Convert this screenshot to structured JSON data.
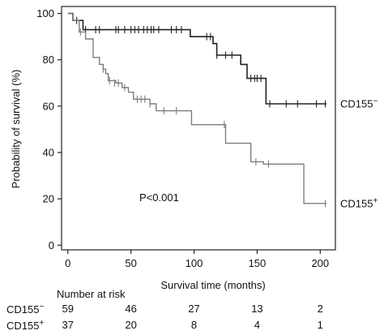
{
  "chart_data": {
    "type": "line",
    "xlabel": "Survival time (months)",
    "ylabel": "Probability of survival (%)",
    "xlim": [
      -5,
      212
    ],
    "ylim": [
      -2,
      103
    ],
    "x_ticks": [
      "0",
      "50",
      "100",
      "150",
      "200"
    ],
    "y_ticks": [
      "0",
      "20",
      "40",
      "60",
      "80",
      "100"
    ],
    "annotation": "P<0.001",
    "grid": false,
    "series": [
      {
        "name_base": "CD155",
        "name_sign": "−",
        "color": "#222222",
        "stroke_width": 1.6,
        "steps": [
          [
            0,
            100
          ],
          [
            4,
            97
          ],
          [
            12,
            93
          ],
          [
            93,
            93
          ],
          [
            97,
            90
          ],
          [
            113,
            90
          ],
          [
            115,
            87
          ],
          [
            118,
            82
          ],
          [
            135,
            82
          ],
          [
            137,
            78
          ],
          [
            142,
            72
          ],
          [
            153,
            72
          ],
          [
            157,
            61
          ],
          [
            205,
            61
          ]
        ],
        "censors": [
          [
            7,
            97
          ],
          [
            14,
            93
          ],
          [
            22,
            93
          ],
          [
            25,
            93
          ],
          [
            38,
            93
          ],
          [
            40,
            93
          ],
          [
            45,
            93
          ],
          [
            50,
            93
          ],
          [
            53,
            93
          ],
          [
            56,
            93
          ],
          [
            60,
            93
          ],
          [
            63,
            93
          ],
          [
            66,
            93
          ],
          [
            68,
            93
          ],
          [
            72,
            93
          ],
          [
            82,
            93
          ],
          [
            86,
            93
          ],
          [
            90,
            93
          ],
          [
            110,
            90
          ],
          [
            113,
            90
          ],
          [
            118,
            82
          ],
          [
            125,
            82
          ],
          [
            130,
            82
          ],
          [
            145,
            72
          ],
          [
            148,
            72
          ],
          [
            150,
            72
          ],
          [
            153,
            72
          ],
          [
            160,
            61
          ],
          [
            173,
            61
          ],
          [
            182,
            61
          ],
          [
            197,
            61
          ],
          [
            204,
            61
          ]
        ]
      },
      {
        "name_base": "CD155",
        "name_sign": "+",
        "color": "#7d7d7d",
        "stroke_width": 1.4,
        "steps": [
          [
            0,
            100
          ],
          [
            4,
            97
          ],
          [
            9,
            92
          ],
          [
            14,
            89
          ],
          [
            20,
            81
          ],
          [
            25,
            78
          ],
          [
            28,
            76
          ],
          [
            30,
            74
          ],
          [
            32,
            71
          ],
          [
            38,
            70
          ],
          [
            43,
            68
          ],
          [
            48,
            66
          ],
          [
            52,
            63
          ],
          [
            65,
            61
          ],
          [
            70,
            58
          ],
          [
            95,
            58
          ],
          [
            98,
            52
          ],
          [
            122,
            52
          ],
          [
            125,
            44
          ],
          [
            140,
            44
          ],
          [
            145,
            36
          ],
          [
            155,
            35
          ],
          [
            183,
            35
          ],
          [
            187,
            18
          ],
          [
            205,
            18
          ]
        ],
        "censors": [
          [
            10,
            92
          ],
          [
            28,
            76
          ],
          [
            33,
            71
          ],
          [
            37,
            70
          ],
          [
            40,
            70
          ],
          [
            45,
            68
          ],
          [
            55,
            63
          ],
          [
            58,
            63
          ],
          [
            61,
            63
          ],
          [
            65,
            61
          ],
          [
            76,
            58
          ],
          [
            86,
            58
          ],
          [
            124,
            52
          ],
          [
            149,
            36
          ],
          [
            159,
            35
          ],
          [
            204,
            18
          ]
        ]
      }
    ],
    "risk_table": {
      "title": "Number at risk",
      "times": [
        0,
        50,
        100,
        150,
        200
      ],
      "rows": [
        {
          "label_base": "CD155",
          "label_sign": "−",
          "counts": [
            "59",
            "46",
            "27",
            "13",
            "2"
          ]
        },
        {
          "label_base": "CD155",
          "label_sign": "+",
          "counts": [
            "37",
            "20",
            "8",
            "4",
            "1"
          ]
        }
      ]
    }
  }
}
